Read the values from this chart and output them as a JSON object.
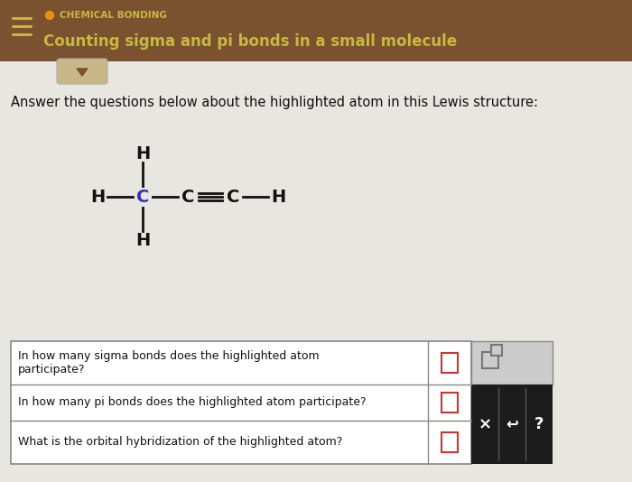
{
  "header_bg_color": "#7A5230",
  "header_text_color": "#C8B840",
  "header_topic": "CHEMICAL BONDING",
  "header_subtitle": "Counting sigma and pi bonds in a small molecule",
  "body_bg_color": "#E8E6E0",
  "question_text": "Answer the questions below about the highlighted atom in this Lewis structure:",
  "questions": [
    "In how many sigma bonds does the highlighted atom\nparticipate?",
    "In how many pi bonds does the highlighted atom participate?",
    "What is the orbital hybridization of the highlighted atom?"
  ],
  "highlight_color": "#3333BB",
  "bond_color": "#111111",
  "table_bg": "#FFFFFF",
  "table_border": "#888888",
  "input_border_color": "#CC3333",
  "dark_panel_color": "#1C1C1C",
  "gray_panel_color": "#CCCCCC",
  "menu_color": "#C8B840",
  "orange_dot": "#E89010",
  "arrow_bg": "#C8B888",
  "arrow_color": "#7A5230",
  "figw": 7.0,
  "figh": 5.34,
  "dpi": 100
}
